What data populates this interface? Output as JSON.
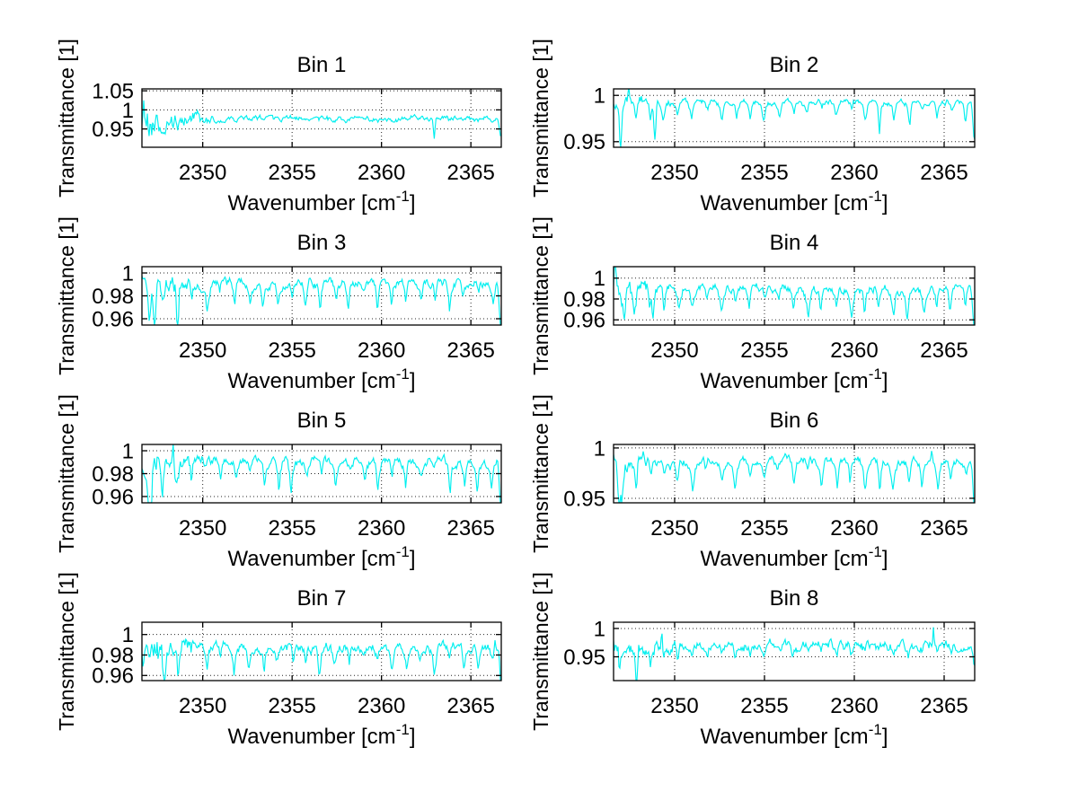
{
  "figure": {
    "background": "#ffffff",
    "line_color": "#00efef",
    "grid_color": "#000000",
    "axes_color": "#000000"
  },
  "chart_data": {
    "type": "line",
    "title": "",
    "xlabel": {
      "prefix": "Wavenumber [cm",
      "sup": "-1",
      "suffix": "]"
    },
    "ylabel": "Transmittance [1]",
    "xlim": [
      2346.6,
      2366.7
    ],
    "xtick_values": [
      2350,
      2355,
      2360,
      2365
    ],
    "xtick_labels": [
      "2350",
      "2355",
      "2360",
      "2365"
    ],
    "grid": "dotted",
    "legend": "none",
    "sample_step": 0.05,
    "absorption_line_spacing": 0.8,
    "plots": [
      {
        "title": "Bin 1",
        "ytick_values": [
          1.05,
          1,
          0.95
        ],
        "ytick_labels": [
          "1.05",
          "1",
          "0.95"
        ],
        "ylim": [
          0.902,
          1.055
        ],
        "baseline": 0.978,
        "noise_sigma": 0.005,
        "left_noise_mult": 6,
        "dip_depth": 0.006,
        "left_dip_mult": 4,
        "seed": 101,
        "features": [
          {
            "x": 2346.72,
            "a": 0.06,
            "w": 0.06
          },
          {
            "x": 2347.15,
            "a": -0.05,
            "w": 0.06
          },
          {
            "x": 2362.95,
            "a": -0.042,
            "w": 0.06
          },
          {
            "x": 2366.68,
            "a": -0.045,
            "w": 0.1
          }
        ]
      },
      {
        "title": "Bin 2",
        "ytick_values": [
          1,
          0.95
        ],
        "ytick_labels": [
          "1",
          "0.95"
        ],
        "ylim": [
          0.944,
          1.007
        ],
        "baseline": 0.9945,
        "noise_sigma": 0.0022,
        "left_noise_mult": 2.4,
        "dip_depth": 0.015,
        "left_dip_mult": 1.7,
        "seed": 202,
        "features": [
          {
            "x": 2347.45,
            "a": 0.02,
            "w": 0.05
          },
          {
            "x": 2347.0,
            "a": -0.04,
            "w": 0.07
          },
          {
            "x": 2348.9,
            "a": -0.045,
            "w": 0.07
          },
          {
            "x": 2361.4,
            "a": -0.02,
            "w": 0.06
          },
          {
            "x": 2363.1,
            "a": -0.018,
            "w": 0.06
          },
          {
            "x": 2366.68,
            "a": -0.04,
            "w": 0.1
          }
        ]
      },
      {
        "title": "Bin 3",
        "ytick_values": [
          1,
          0.98,
          0.96
        ],
        "ytick_labels": [
          "1",
          "0.98",
          "0.96"
        ],
        "ylim": [
          0.9545,
          1.0055
        ],
        "baseline": 0.9925,
        "noise_sigma": 0.0028,
        "left_noise_mult": 2.2,
        "dip_depth": 0.016,
        "left_dip_mult": 1.5,
        "seed": 303,
        "features": [
          {
            "x": 2347.3,
            "a": -0.035,
            "w": 0.08
          },
          {
            "x": 2348.6,
            "a": -0.035,
            "w": 0.07
          },
          {
            "x": 2366.68,
            "a": -0.045,
            "w": 0.1
          }
        ]
      },
      {
        "title": "Bin 4",
        "ytick_values": [
          1,
          0.98,
          0.96
        ],
        "ytick_labels": [
          "1",
          "0.98",
          "0.96"
        ],
        "ylim": [
          0.955,
          1.011
        ],
        "baseline": 0.991,
        "noise_sigma": 0.003,
        "left_noise_mult": 2.2,
        "dip_depth": 0.018,
        "left_dip_mult": 1.6,
        "seed": 404,
        "features": [
          {
            "x": 2346.68,
            "a": 0.035,
            "w": 0.05
          },
          {
            "x": 2347.2,
            "a": -0.03,
            "w": 0.06
          },
          {
            "x": 2348.8,
            "a": -0.028,
            "w": 0.06
          },
          {
            "x": 2366.68,
            "a": -0.048,
            "w": 0.1
          }
        ]
      },
      {
        "title": "Bin 5",
        "ytick_values": [
          1,
          0.98,
          0.96
        ],
        "ytick_labels": [
          "1",
          "0.98",
          "0.96"
        ],
        "ylim": [
          0.9545,
          1.0055
        ],
        "baseline": 0.992,
        "noise_sigma": 0.0028,
        "left_noise_mult": 2.4,
        "dip_depth": 0.017,
        "left_dip_mult": 1.5,
        "seed": 505,
        "features": [
          {
            "x": 2348.35,
            "a": 0.016,
            "w": 0.05
          },
          {
            "x": 2347.1,
            "a": -0.032,
            "w": 0.06
          },
          {
            "x": 2366.68,
            "a": -0.048,
            "w": 0.1
          }
        ]
      },
      {
        "title": "Bin 6",
        "ytick_values": [
          1,
          0.95
        ],
        "ytick_labels": [
          "1",
          "0.95"
        ],
        "ylim": [
          0.9455,
          1.0035
        ],
        "baseline": 0.9895,
        "noise_sigma": 0.003,
        "left_noise_mult": 2.4,
        "dip_depth": 0.02,
        "left_dip_mult": 1.6,
        "seed": 606,
        "features": [
          {
            "x": 2346.9,
            "a": -0.05,
            "w": 0.07
          },
          {
            "x": 2364.3,
            "a": 0.01,
            "w": 0.05
          },
          {
            "x": 2366.68,
            "a": -0.05,
            "w": 0.1
          }
        ]
      },
      {
        "title": "Bin 7",
        "ytick_values": [
          1,
          0.98,
          0.96
        ],
        "ytick_labels": [
          "1",
          "0.98",
          "0.96"
        ],
        "ylim": [
          0.955,
          1.012
        ],
        "baseline": 0.9895,
        "noise_sigma": 0.0035,
        "left_noise_mult": 3.4,
        "dip_depth": 0.018,
        "left_dip_mult": 1.4,
        "seed": 707,
        "features": [
          {
            "x": 2366.35,
            "a": 0.014,
            "w": 0.05
          },
          {
            "x": 2366.68,
            "a": -0.04,
            "w": 0.09
          }
        ]
      },
      {
        "title": "Bin 8",
        "ytick_values": [
          1,
          0.95
        ],
        "ytick_labels": [
          "1",
          "0.95"
        ],
        "ylim": [
          0.908,
          1.011
        ],
        "baseline": 0.9715,
        "noise_sigma": 0.006,
        "left_noise_mult": 2.0,
        "dip_depth": 0.012,
        "left_dip_mult": 3.0,
        "seed": 808,
        "features": [
          {
            "x": 2347.9,
            "a": -0.045,
            "w": 0.06
          },
          {
            "x": 2349.3,
            "a": 0.03,
            "w": 0.05
          },
          {
            "x": 2364.4,
            "a": 0.03,
            "w": 0.05
          },
          {
            "x": 2366.68,
            "a": -0.038,
            "w": 0.09
          }
        ]
      }
    ]
  }
}
